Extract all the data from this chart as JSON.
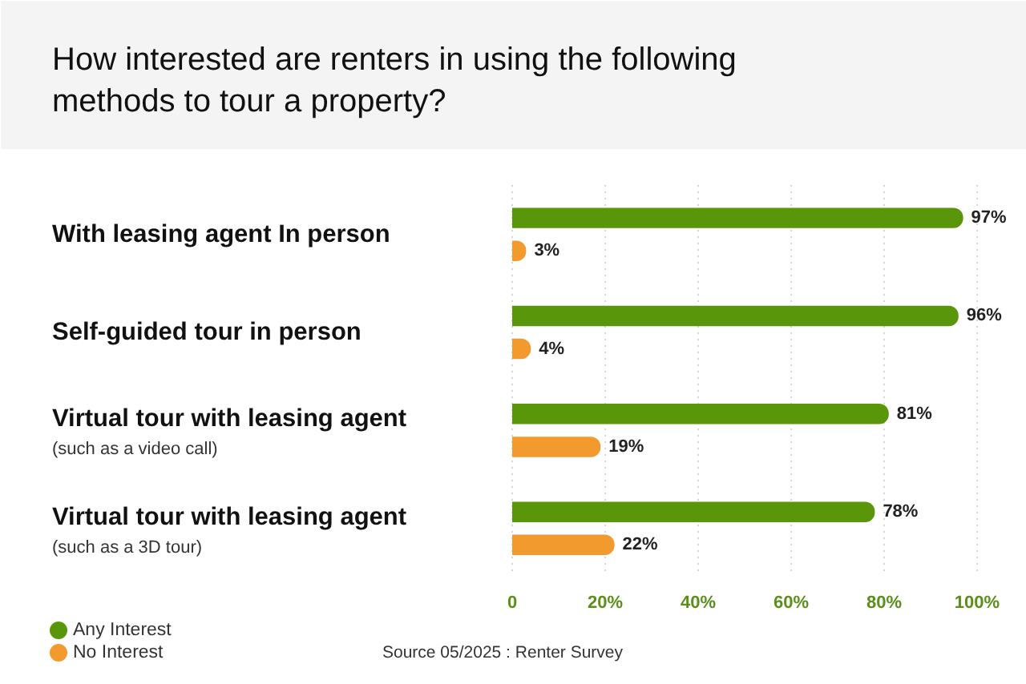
{
  "chart_data": {
    "type": "bar",
    "orientation": "horizontal",
    "title": "How interested are renters in using the following methods to tour a property?",
    "categories": [
      "With leasing agent In person",
      "Self-guided tour in person",
      "Virtual tour with leasing agent\n(such as a video call)",
      "Virtual tour with leasing agent\n(such as a 3D tour)"
    ],
    "series": [
      {
        "name": "Any Interest",
        "color": "#5a960a",
        "values": [
          97,
          96,
          81,
          78
        ],
        "value_labels": [
          "97%",
          "96%",
          "81%",
          "78%"
        ]
      },
      {
        "name": "No Interest",
        "color": "#f39a2e",
        "values": [
          3,
          4,
          19,
          22
        ],
        "value_labels": [
          "3%",
          "4%",
          "19%",
          "22%"
        ]
      }
    ],
    "xlim": [
      0,
      100
    ],
    "xticks": [
      0,
      {
        "value": 20,
        "label": "20%"
      },
      {
        "value": 40,
        "label": "40%"
      },
      {
        "value": 60,
        "label": "60%"
      },
      {
        "value": 80,
        "label": "80%"
      },
      {
        "value": 100,
        "label": "100%"
      }
    ],
    "grid": "x",
    "legend": "bottom left",
    "annotations": [
      "Source 05/2025 : Renter Survey"
    ]
  }
}
